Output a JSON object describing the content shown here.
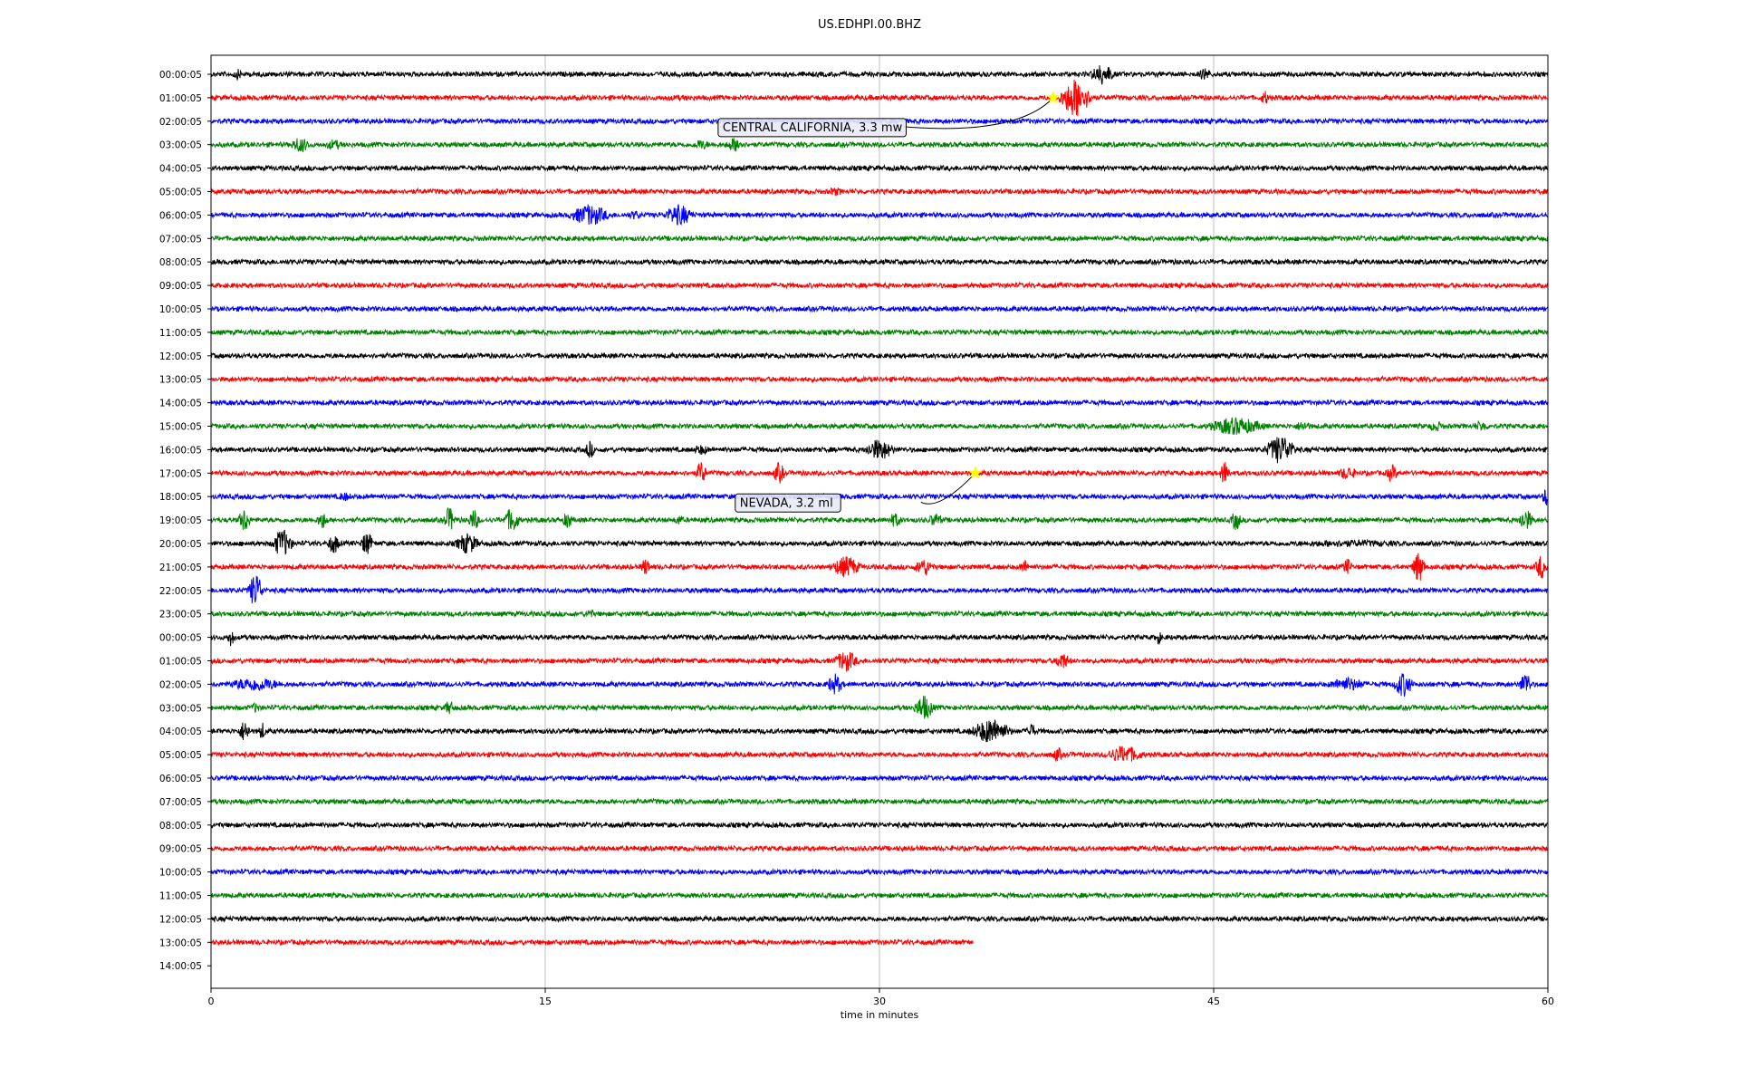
{
  "chart_data": {
    "type": "line",
    "title": "US.EDHPI.00.BHZ",
    "xlabel": "time in minutes",
    "ylabel": "",
    "xlim": [
      0,
      60
    ],
    "x_ticks": [
      0,
      15,
      30,
      45,
      60
    ],
    "grid": "vertical lines at 15, 30, 45",
    "row_labels": [
      "00:00:05",
      "01:00:05",
      "02:00:05",
      "03:00:05",
      "04:00:05",
      "05:00:05",
      "06:00:05",
      "07:00:05",
      "08:00:05",
      "09:00:05",
      "10:00:05",
      "11:00:05",
      "12:00:05",
      "13:00:05",
      "14:00:05",
      "15:00:05",
      "16:00:05",
      "17:00:05",
      "18:00:05",
      "19:00:05",
      "20:00:05",
      "21:00:05",
      "22:00:05",
      "23:00:05",
      "00:00:05",
      "01:00:05",
      "02:00:05",
      "03:00:05",
      "04:00:05",
      "05:00:05",
      "06:00:05",
      "07:00:05",
      "08:00:05",
      "09:00:05",
      "10:00:05",
      "11:00:05",
      "12:00:05",
      "13:00:05",
      "14:00:05"
    ],
    "trace_colors": [
      "#000000",
      "#ff0000",
      "#0000ff",
      "#008000"
    ],
    "trace_count": 38,
    "last_trace_end_minute": 34.2,
    "events": [
      {
        "label": "CENTRAL CALIFORNIA, 3.3 mw",
        "row": 1,
        "minute": 37.8
      },
      {
        "label": "NEVADA, 3.2 ml",
        "row": 17,
        "minute": 34.3
      }
    ],
    "star_color": "#ffff00",
    "bursts": [
      [
        [
          1.2,
          0.6,
          6
        ],
        [
          40,
          1.2,
          12
        ],
        [
          44.6,
          0.6,
          8
        ]
      ],
      [
        [
          38.8,
          1.5,
          22
        ],
        [
          47.3,
          0.5,
          8
        ],
        [
          21,
          5,
          3
        ],
        [
          30,
          8,
          3
        ]
      ],
      [],
      [
        [
          4,
          1,
          9
        ],
        [
          5.5,
          1,
          6
        ],
        [
          22,
          1,
          6
        ],
        [
          23.5,
          1,
          8
        ]
      ],
      [],
      [
        [
          28,
          1,
          5
        ],
        [
          56,
          1,
          3
        ]
      ],
      [
        [
          17,
          2,
          12
        ],
        [
          21,
          1.5,
          12
        ],
        [
          19,
          1,
          5
        ]
      ],
      [],
      [],
      [],
      [],
      [],
      [],
      [],
      [],
      [
        [
          46,
          3,
          10
        ],
        [
          49,
          1,
          6
        ],
        [
          55,
          1,
          6
        ],
        [
          57,
          1,
          6
        ]
      ],
      [
        [
          17,
          0.5,
          10
        ],
        [
          22,
          1,
          6
        ],
        [
          30,
          1.5,
          12
        ],
        [
          48,
          1.5,
          16
        ]
      ],
      [
        [
          22,
          0.5,
          14
        ],
        [
          25.5,
          0.6,
          12
        ],
        [
          45.5,
          0.5,
          14
        ],
        [
          51,
          1,
          8
        ],
        [
          53,
          0.6,
          10
        ]
      ],
      [
        [
          6,
          1,
          5
        ],
        [
          60,
          0.6,
          12
        ]
      ],
      [
        [
          1.5,
          0.6,
          14
        ],
        [
          5,
          0.6,
          10
        ],
        [
          10.7,
          0.6,
          14
        ],
        [
          11.8,
          0.6,
          12
        ],
        [
          13.5,
          0.8,
          14
        ],
        [
          16,
          0.5,
          10
        ],
        [
          21,
          0.6,
          6
        ],
        [
          30.7,
          0.8,
          8
        ],
        [
          32.5,
          0.8,
          8
        ],
        [
          46,
          0.5,
          12
        ],
        [
          59,
          0.8,
          12
        ]
      ],
      [
        [
          3.2,
          1,
          16
        ],
        [
          5.5,
          0.6,
          12
        ],
        [
          7,
          0.6,
          14
        ],
        [
          11.5,
          1.2,
          12
        ],
        [
          51,
          9,
          4
        ]
      ],
      [
        [
          19.5,
          0.5,
          10
        ],
        [
          28.5,
          1.5,
          12
        ],
        [
          32,
          1,
          10
        ],
        [
          36.5,
          0.5,
          8
        ],
        [
          51,
          0.5,
          10
        ],
        [
          54.2,
          0.6,
          18
        ],
        [
          59.7,
          0.6,
          14
        ]
      ],
      [
        [
          2,
          0.7,
          20
        ]
      ],
      [
        [
          17,
          0.5,
          6
        ]
      ],
      [
        [
          0.9,
          0.4,
          10
        ],
        [
          42.5,
          0.4,
          8
        ]
      ],
      [
        [
          28.5,
          1.2,
          12
        ],
        [
          38.2,
          0.8,
          10
        ]
      ],
      [
        [
          2,
          3,
          8
        ],
        [
          28,
          0.8,
          12
        ],
        [
          51,
          2,
          8
        ],
        [
          53.5,
          1,
          14
        ],
        [
          59,
          0.6,
          14
        ]
      ],
      [
        [
          2,
          0.6,
          6
        ],
        [
          10.7,
          0.6,
          8
        ],
        [
          32,
          1,
          14
        ]
      ],
      [
        [
          1.5,
          0.6,
          12
        ],
        [
          2.3,
          0.4,
          10
        ],
        [
          35,
          2,
          14
        ],
        [
          36.8,
          0.5,
          10
        ]
      ],
      [
        [
          38,
          0.6,
          8
        ],
        [
          41,
          2,
          10
        ]
      ],
      [],
      [],
      [],
      [],
      [],
      [],
      [],
      []
    ]
  }
}
